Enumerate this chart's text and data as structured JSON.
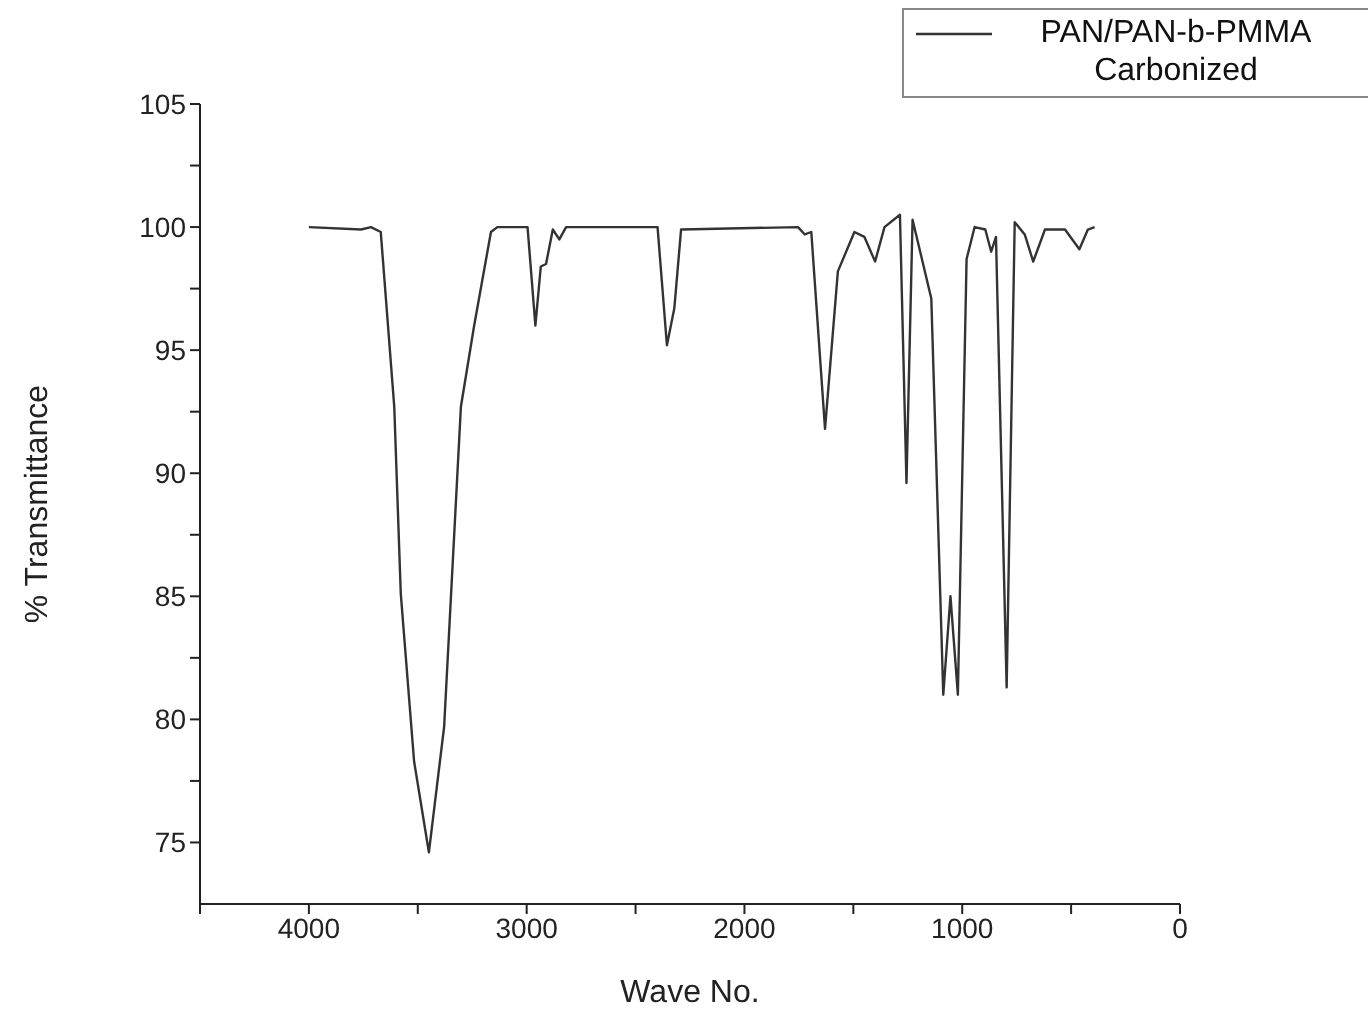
{
  "chart_data": {
    "type": "line",
    "xlabel": "Wave No.",
    "ylabel": "% Transmittance",
    "xlim": [
      4500,
      0
    ],
    "xticks": [
      {
        "value": 4500,
        "label": null
      },
      4000,
      {
        "value": 3500,
        "label": null
      },
      3000,
      {
        "value": 2500,
        "label": null
      },
      2000,
      {
        "value": 1500,
        "label": null
      },
      1000,
      {
        "value": 500,
        "label": null
      },
      0
    ],
    "ylim": [
      72.5,
      105
    ],
    "yticks": [
      75,
      {
        "value": 77.5,
        "label": null
      },
      80,
      {
        "value": 82.5,
        "label": null
      },
      85,
      {
        "value": 87.5,
        "label": null
      },
      90,
      {
        "value": 92.5,
        "label": null
      },
      95,
      {
        "value": 97.5,
        "label": null
      },
      100,
      {
        "value": 102.5,
        "label": null
      },
      105
    ],
    "grid": false,
    "legend": "top right",
    "marker": "none",
    "line_style": "solid",
    "series": [
      {
        "name": "PAN/PAN-b-PMMA Carbonized",
        "color": "#333333",
        "x": [
          4000,
          3760,
          3715,
          3670,
          3608,
          3578,
          3517,
          3449,
          3379,
          3302,
          3241,
          3164,
          3135,
          2996,
          2960,
          2935,
          2911,
          2880,
          2850,
          2819,
          2399,
          2356,
          2322,
          2291,
          1754,
          1723,
          1693,
          1630,
          1571,
          1495,
          1449,
          1400,
          1357,
          1286,
          1256,
          1228,
          1142,
          1087,
          1054,
          1020,
          980,
          943,
          894,
          867,
          845,
          796,
          759,
          713,
          674,
          620,
          528,
          462,
          423,
          392
        ],
        "values": [
          100,
          99.9,
          100,
          99.8,
          92.7,
          85.1,
          78.3,
          74.6,
          79.7,
          92.7,
          96,
          99.8,
          100,
          100,
          96,
          98.4,
          98.5,
          99.9,
          99.5,
          100,
          100,
          95.2,
          96.7,
          99.9,
          100,
          99.7,
          99.8,
          91.8,
          98.2,
          99.8,
          99.6,
          98.6,
          100,
          100.5,
          89.6,
          100.3,
          97.1,
          81,
          85,
          81,
          98.7,
          100,
          99.9,
          99,
          99.6,
          81.3,
          100.2,
          99.7,
          98.6,
          99.9,
          99.9,
          99.1,
          99.9,
          100
        ]
      }
    ]
  }
}
